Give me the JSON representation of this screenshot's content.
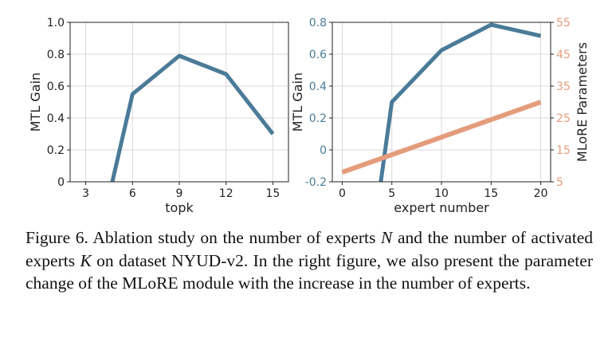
{
  "chart_data": [
    {
      "type": "line",
      "xlabel": "topk",
      "ylabel": "MTL Gain",
      "x_ticks": [
        3,
        6,
        9,
        12,
        15
      ],
      "y_ticks": [
        0,
        0.2,
        0.4,
        0.6,
        0.8,
        1.0
      ],
      "y_tick_labels": [
        "0",
        "0.2",
        "0.4",
        "0.6",
        "0.8",
        "1.0"
      ],
      "xlim": [
        2,
        16
      ],
      "ylim": [
        0,
        1.0
      ],
      "grid": true,
      "series": [
        {
          "x": [
            4,
            6,
            9,
            12,
            15
          ],
          "y": [
            -0.3,
            0.55,
            0.79,
            0.675,
            0.3
          ],
          "color": "#4a7b98"
        }
      ]
    },
    {
      "type": "line",
      "xlabel": "expert number",
      "ylabel": "MTL Gain",
      "y2label": "MLoRE Parameters",
      "x_ticks": [
        0,
        5,
        10,
        15,
        20
      ],
      "y_ticks": [
        -0.2,
        0,
        0.2,
        0.4,
        0.6,
        0.8
      ],
      "y_tick_labels": [
        "-0.2",
        "0",
        "0.2",
        "0.4",
        "0.6",
        "0.8"
      ],
      "y2_ticks": [
        5,
        15,
        25,
        35,
        45,
        55
      ],
      "xlim": [
        -1,
        21
      ],
      "ylim": [
        -0.2,
        0.8
      ],
      "y2lim": [
        5,
        55
      ],
      "grid": true,
      "series": [
        {
          "axis": "left",
          "x": [
            3,
            5,
            10,
            15,
            20
          ],
          "y": [
            -0.6,
            0.3,
            0.625,
            0.785,
            0.715
          ],
          "color": "#4a7b98"
        },
        {
          "axis": "right",
          "x": [
            0,
            20
          ],
          "y": [
            8,
            30
          ],
          "color": "#e59c7c"
        }
      ],
      "left_tick_color": "#4a7b98",
      "right_tick_color": "#e59c7c"
    }
  ],
  "caption": {
    "p1": "Figure 6.  Ablation study on the number of experts ",
    "v1": "N",
    "p2": " and the number of activated experts ",
    "v2": "K",
    "p3": " on dataset NYUD-v2. In the right figure, we also present the parameter change of the MLoRE module with the increase in the number of experts."
  }
}
